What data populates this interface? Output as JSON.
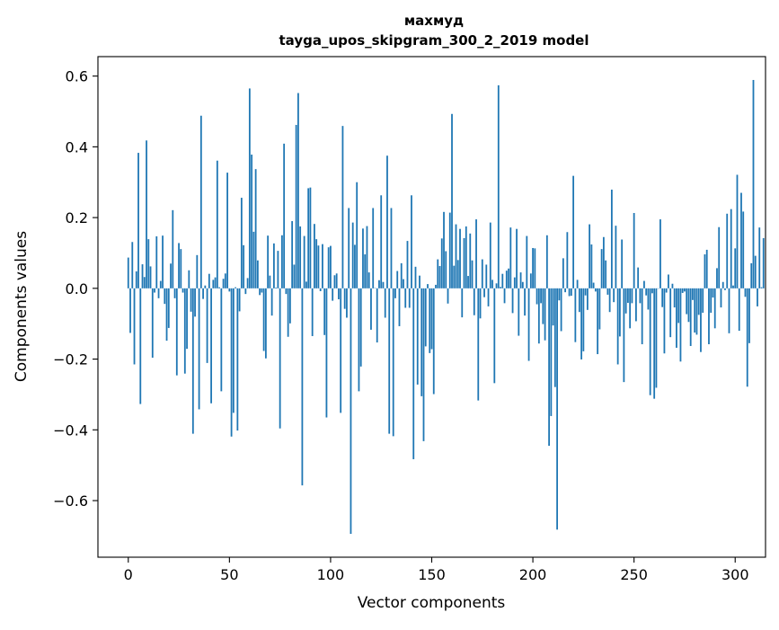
{
  "chart_data": {
    "type": "bar",
    "title": "махмуд",
    "subtitle": "tayga_upos_skipgram_300_2_2019 model",
    "xlabel": "Vector components",
    "ylabel": "Components values",
    "xlim": [
      -15,
      315
    ],
    "ylim": [
      -0.76,
      0.655
    ],
    "xticks": [
      0,
      50,
      100,
      150,
      200,
      250,
      300
    ],
    "yticks": [
      -0.6,
      -0.4,
      -0.2,
      0.0,
      0.2,
      0.4,
      0.6
    ],
    "xtick_labels": [
      "0",
      "50",
      "100",
      "150",
      "200",
      "250",
      "300"
    ],
    "ytick_labels": [
      "−0.6",
      "−0.4",
      "−0.2",
      "0.0",
      "0.2",
      "0.4",
      "0.6"
    ],
    "bar_color": "#1f77b4",
    "grid": false,
    "values": [
      0.087,
      -0.126,
      0.131,
      -0.215,
      0.048,
      0.383,
      -0.327,
      0.068,
      0.032,
      0.418,
      0.139,
      0.062,
      -0.196,
      -0.012,
      0.147,
      -0.028,
      0.021,
      0.149,
      -0.044,
      -0.148,
      -0.112,
      0.07,
      0.221,
      -0.028,
      -0.246,
      0.128,
      0.111,
      -0.012,
      -0.241,
      -0.171,
      0.051,
      -0.066,
      -0.411,
      -0.08,
      0.094,
      -0.342,
      0.488,
      -0.03,
      0.008,
      -0.211,
      0.041,
      -0.325,
      0.024,
      0.031,
      0.361,
      0.003,
      -0.291,
      0.027,
      0.042,
      0.327,
      -0.009,
      -0.419,
      -0.352,
      0.003,
      -0.402,
      -0.065,
      0.256,
      0.122,
      -0.016,
      0.029,
      0.565,
      0.378,
      0.16,
      0.337,
      0.079,
      -0.019,
      -0.012,
      -0.177,
      -0.198,
      0.149,
      0.036,
      -0.077,
      0.127,
      0.002,
      0.106,
      -0.396,
      0.15,
      0.409,
      -0.016,
      -0.137,
      -0.099,
      0.19,
      0.067,
      0.462,
      0.552,
      0.175,
      -0.557,
      0.148,
      0.019,
      0.283,
      0.285,
      -0.135,
      0.182,
      0.139,
      0.121,
      -0.008,
      0.125,
      -0.132,
      -0.365,
      0.116,
      0.12,
      -0.035,
      0.037,
      0.042,
      -0.031,
      -0.352,
      0.459,
      -0.058,
      -0.083,
      0.227,
      -0.694,
      0.186,
      0.123,
      0.3,
      -0.291,
      -0.221,
      0.169,
      0.096,
      0.176,
      0.045,
      -0.117,
      0.227,
      0.001,
      -0.153,
      0.023,
      0.263,
      0.018,
      -0.083,
      0.375,
      -0.411,
      0.227,
      -0.418,
      -0.028,
      0.049,
      -0.107,
      0.071,
      0.026,
      -0.055,
      0.134,
      -0.055,
      0.263,
      -0.483,
      0.061,
      -0.272,
      0.036,
      -0.305,
      -0.432,
      -0.164,
      0.012,
      -0.183,
      -0.172,
      -0.299,
      0.01,
      0.082,
      0.063,
      0.141,
      0.216,
      0.105,
      -0.043,
      0.214,
      0.493,
      0.064,
      0.181,
      0.08,
      0.168,
      -0.082,
      0.142,
      0.175,
      0.035,
      0.155,
      0.079,
      -0.076,
      0.195,
      -0.317,
      -0.085,
      0.082,
      -0.025,
      0.067,
      -0.051,
      0.186,
      0.024,
      -0.268,
      0.014,
      0.574,
      0.004,
      0.041,
      -0.042,
      0.05,
      0.056,
      0.172,
      -0.07,
      0.031,
      0.168,
      -0.134,
      0.045,
      0.018,
      -0.077,
      0.148,
      -0.205,
      0.042,
      0.114,
      0.113,
      -0.045,
      -0.156,
      -0.042,
      -0.101,
      -0.147,
      0.15,
      -0.445,
      -0.361,
      -0.105,
      -0.279,
      -0.682,
      -0.034,
      -0.121,
      0.085,
      -0.011,
      0.159,
      -0.022,
      -0.021,
      0.318,
      -0.152,
      0.024,
      -0.067,
      -0.201,
      -0.178,
      -0.02,
      -0.061,
      0.181,
      0.124,
      0.016,
      -0.009,
      -0.186,
      -0.116,
      0.111,
      0.145,
      0.079,
      -0.018,
      -0.067,
      0.279,
      -0.039,
      0.177,
      -0.215,
      -0.136,
      0.138,
      -0.265,
      -0.071,
      -0.041,
      -0.113,
      -0.042,
      0.213,
      -0.093,
      0.059,
      -0.042,
      -0.158,
      0.021,
      -0.02,
      -0.06,
      -0.302,
      -0.014,
      -0.312,
      -0.281,
      -0.001,
      0.195,
      -0.053,
      -0.184,
      -0.012,
      0.039,
      -0.138,
      0.013,
      -0.054,
      -0.168,
      -0.098,
      -0.207,
      -0.013,
      -0.009,
      -0.073,
      -0.095,
      -0.163,
      -0.033,
      -0.125,
      -0.131,
      -0.075,
      -0.18,
      -0.069,
      0.096,
      0.109,
      -0.158,
      -0.069,
      -0.026,
      -0.113,
      0.057,
      0.173,
      -0.054,
      0.018,
      -0.005,
      0.211,
      -0.127,
      0.224,
      0.008,
      0.113,
      0.321,
      -0.12,
      0.27,
      0.217,
      -0.024,
      -0.278,
      -0.155,
      0.071,
      0.589,
      0.092,
      -0.051,
      0.172,
      0.003,
      0.142
    ]
  }
}
